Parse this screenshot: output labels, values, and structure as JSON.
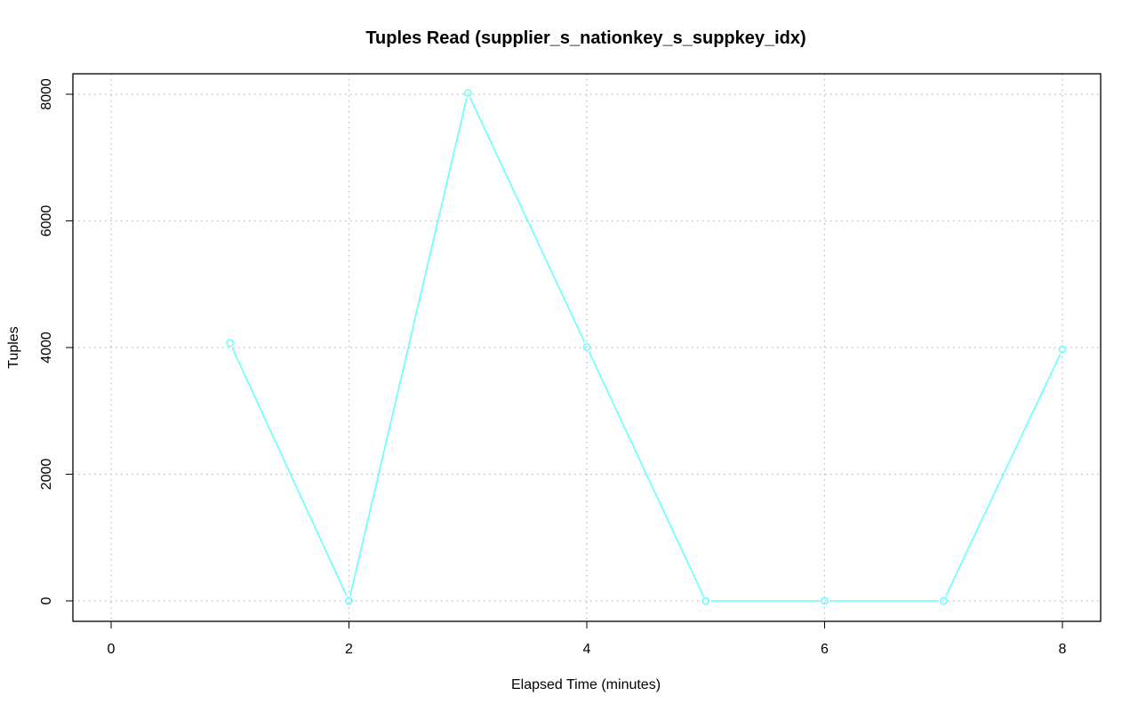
{
  "chart_data": {
    "type": "line",
    "title": "Tuples Read (supplier_s_nationkey_s_suppkey_idx)",
    "xlabel": "Elapsed Time (minutes)",
    "ylabel": "Tuples",
    "xlim": [
      0,
      8
    ],
    "ylim": [
      0,
      8000
    ],
    "x_ticks": [
      0,
      2,
      4,
      6,
      8
    ],
    "y_ticks": [
      0,
      2000,
      4000,
      6000,
      8000
    ],
    "grid": true,
    "series": [
      {
        "color": "#66FFFF",
        "x": [
          1,
          2,
          3,
          4,
          5,
          6,
          7,
          8
        ],
        "y": [
          4070,
          0,
          8020,
          4010,
          0,
          0,
          0,
          3970
        ]
      }
    ]
  }
}
